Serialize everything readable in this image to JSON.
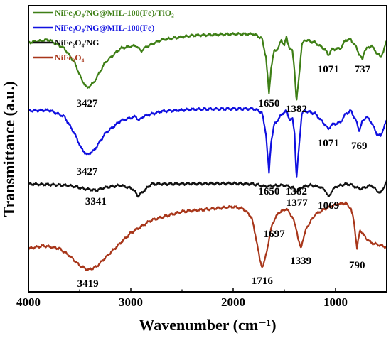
{
  "chart_data": {
    "type": "line",
    "title": "",
    "xlabel": "Wavenumber (cm⁻¹)",
    "ylabel": "Transmittance (a.u.)",
    "xlim": [
      4000,
      500
    ],
    "x_reversed": true,
    "x_ticks": [
      4000,
      3000,
      2000,
      1000
    ],
    "y_ticks_shown": false,
    "grid": false,
    "legend_position": "top-left",
    "series": [
      {
        "name": "NiFe₂O₄/NG@MIL-100(Fe)/TiO₂",
        "color": "#3e7f16",
        "baseline": 8.4,
        "anchors": [
          [
            4000,
            8.2
          ],
          [
            3800,
            8.3
          ],
          [
            3650,
            8.0
          ],
          [
            3550,
            7.5
          ],
          [
            3480,
            6.9
          ],
          [
            3427,
            6.6
          ],
          [
            3360,
            6.8
          ],
          [
            3250,
            7.5
          ],
          [
            3100,
            8.0
          ],
          [
            2950,
            8.1
          ],
          [
            2900,
            7.9
          ],
          [
            2850,
            8.05
          ],
          [
            2700,
            8.3
          ],
          [
            2400,
            8.45
          ],
          [
            2000,
            8.5
          ],
          [
            1800,
            8.5
          ],
          [
            1720,
            8.35
          ],
          [
            1680,
            7.7
          ],
          [
            1650,
            6.4
          ],
          [
            1630,
            7.3
          ],
          [
            1600,
            7.9
          ],
          [
            1560,
            8.0
          ],
          [
            1530,
            8.3
          ],
          [
            1500,
            8.1
          ],
          [
            1480,
            8.4
          ],
          [
            1450,
            8.0
          ],
          [
            1420,
            7.9
          ],
          [
            1400,
            7.2
          ],
          [
            1382,
            6.1
          ],
          [
            1360,
            6.9
          ],
          [
            1330,
            8.1
          ],
          [
            1300,
            8.3
          ],
          [
            1200,
            8.2
          ],
          [
            1100,
            7.95
          ],
          [
            1071,
            7.75
          ],
          [
            1040,
            7.95
          ],
          [
            950,
            8.0
          ],
          [
            900,
            8.3
          ],
          [
            850,
            8.3
          ],
          [
            800,
            8.05
          ],
          [
            770,
            7.8
          ],
          [
            737,
            7.6
          ],
          [
            720,
            7.9
          ],
          [
            690,
            8.0
          ],
          [
            650,
            8.1
          ],
          [
            600,
            7.85
          ],
          [
            560,
            7.7
          ],
          [
            530,
            7.9
          ],
          [
            500,
            8.3
          ]
        ]
      },
      {
        "name": "NiFe₂O₄/NG@MIL-100(Fe)",
        "color": "#1010e0",
        "baseline": 5.8,
        "anchors": [
          [
            4000,
            5.8
          ],
          [
            3800,
            5.82
          ],
          [
            3650,
            5.6
          ],
          [
            3550,
            5.0
          ],
          [
            3480,
            4.45
          ],
          [
            3427,
            4.25
          ],
          [
            3360,
            4.4
          ],
          [
            3250,
            5.0
          ],
          [
            3100,
            5.45
          ],
          [
            2950,
            5.6
          ],
          [
            2920,
            5.45
          ],
          [
            2880,
            5.6
          ],
          [
            2700,
            5.78
          ],
          [
            2400,
            5.85
          ],
          [
            2000,
            5.87
          ],
          [
            1800,
            5.87
          ],
          [
            1720,
            5.75
          ],
          [
            1680,
            5.0
          ],
          [
            1650,
            3.6
          ],
          [
            1630,
            4.7
          ],
          [
            1600,
            5.3
          ],
          [
            1560,
            5.5
          ],
          [
            1520,
            5.7
          ],
          [
            1480,
            5.8
          ],
          [
            1450,
            5.5
          ],
          [
            1420,
            5.5
          ],
          [
            1400,
            5.0
          ],
          [
            1382,
            3.4
          ],
          [
            1360,
            4.4
          ],
          [
            1330,
            5.7
          ],
          [
            1300,
            5.8
          ],
          [
            1200,
            5.7
          ],
          [
            1100,
            5.3
          ],
          [
            1071,
            5.15
          ],
          [
            1040,
            5.3
          ],
          [
            950,
            5.4
          ],
          [
            900,
            5.7
          ],
          [
            850,
            5.8
          ],
          [
            800,
            5.45
          ],
          [
            769,
            5.1
          ],
          [
            740,
            5.4
          ],
          [
            700,
            5.6
          ],
          [
            650,
            5.4
          ],
          [
            600,
            5.0
          ],
          [
            560,
            4.9
          ],
          [
            530,
            5.2
          ],
          [
            500,
            5.45
          ]
        ]
      },
      {
        "name": "NiFe₂O₄/NG",
        "color": "#111111",
        "baseline": 3.2,
        "anchors": [
          [
            4000,
            3.22
          ],
          [
            3800,
            3.2
          ],
          [
            3600,
            3.17
          ],
          [
            3450,
            3.05
          ],
          [
            3341,
            3.0
          ],
          [
            3250,
            3.1
          ],
          [
            3100,
            3.18
          ],
          [
            2980,
            3.05
          ],
          [
            2930,
            2.8
          ],
          [
            2880,
            2.95
          ],
          [
            2800,
            3.22
          ],
          [
            2400,
            3.23
          ],
          [
            2000,
            3.24
          ],
          [
            1800,
            3.22
          ],
          [
            1700,
            3.14
          ],
          [
            1600,
            3.16
          ],
          [
            1500,
            3.18
          ],
          [
            1420,
            3.1
          ],
          [
            1377,
            2.95
          ],
          [
            1340,
            3.1
          ],
          [
            1250,
            3.18
          ],
          [
            1150,
            3.12
          ],
          [
            1100,
            3.0
          ],
          [
            1069,
            2.75
          ],
          [
            1040,
            2.95
          ],
          [
            1000,
            3.12
          ],
          [
            900,
            3.22
          ],
          [
            850,
            3.2
          ],
          [
            800,
            3.1
          ],
          [
            750,
            3.05
          ],
          [
            700,
            3.12
          ],
          [
            650,
            3.18
          ],
          [
            600,
            3.0
          ],
          [
            560,
            2.9
          ],
          [
            530,
            3.1
          ],
          [
            500,
            3.3
          ]
        ]
      },
      {
        "name": "NiFe₂O₄",
        "color": "#a8361a",
        "baseline": 2.3,
        "anchors": [
          [
            4000,
            0.95
          ],
          [
            3850,
            1.05
          ],
          [
            3700,
            0.95
          ],
          [
            3600,
            0.7
          ],
          [
            3500,
            0.35
          ],
          [
            3419,
            0.2
          ],
          [
            3340,
            0.3
          ],
          [
            3200,
            0.8
          ],
          [
            3000,
            1.5
          ],
          [
            2800,
            1.95
          ],
          [
            2500,
            2.25
          ],
          [
            2200,
            2.35
          ],
          [
            2000,
            2.42
          ],
          [
            1900,
            2.35
          ],
          [
            1820,
            2.05
          ],
          [
            1770,
            1.2
          ],
          [
            1740,
            0.55
          ],
          [
            1716,
            0.3
          ],
          [
            1697,
            0.45
          ],
          [
            1670,
            0.9
          ],
          [
            1620,
            1.8
          ],
          [
            1560,
            2.2
          ],
          [
            1480,
            2.35
          ],
          [
            1420,
            2.05
          ],
          [
            1380,
            1.6
          ],
          [
            1360,
            1.2
          ],
          [
            1339,
            0.95
          ],
          [
            1320,
            1.25
          ],
          [
            1280,
            1.7
          ],
          [
            1200,
            2.15
          ],
          [
            1100,
            2.35
          ],
          [
            1000,
            2.5
          ],
          [
            900,
            2.55
          ],
          [
            850,
            2.35
          ],
          [
            820,
            1.9
          ],
          [
            800,
            1.25
          ],
          [
            790,
            0.95
          ],
          [
            780,
            1.2
          ],
          [
            760,
            1.6
          ],
          [
            740,
            1.5
          ],
          [
            700,
            1.3
          ],
          [
            650,
            1.15
          ],
          [
            600,
            1.1
          ],
          [
            550,
            1.05
          ],
          [
            500,
            1.0
          ]
        ]
      }
    ],
    "annotations": [
      {
        "text": "3427",
        "x": 3427,
        "y": 5.95
      },
      {
        "text": "1650",
        "x": 1650,
        "y": 5.95
      },
      {
        "text": "1382",
        "x": 1382,
        "y": 5.75
      },
      {
        "text": "1071",
        "x": 1071,
        "y": 7.15
      },
      {
        "text": "737",
        "x": 737,
        "y": 7.15
      },
      {
        "text": "3427",
        "x": 3427,
        "y": 3.55
      },
      {
        "text": "1650",
        "x": 1650,
        "y": 2.85
      },
      {
        "text": "1382",
        "x": 1382,
        "y": 2.85
      },
      {
        "text": "1071",
        "x": 1071,
        "y": 4.55
      },
      {
        "text": "769",
        "x": 769,
        "y": 4.45
      },
      {
        "text": "3341",
        "x": 3341,
        "y": 2.5
      },
      {
        "text": "1377",
        "x": 1377,
        "y": 2.45
      },
      {
        "text": "1069",
        "x": 1069,
        "y": 2.35
      },
      {
        "text": "1697",
        "x": 1600,
        "y": 1.35
      },
      {
        "text": "1339",
        "x": 1339,
        "y": 0.4
      },
      {
        "text": "790",
        "x": 790,
        "y": 0.25
      },
      {
        "text": "3419",
        "x": 3419,
        "y": -0.4
      },
      {
        "text": "1716",
        "x": 1716,
        "y": -0.3
      }
    ]
  }
}
